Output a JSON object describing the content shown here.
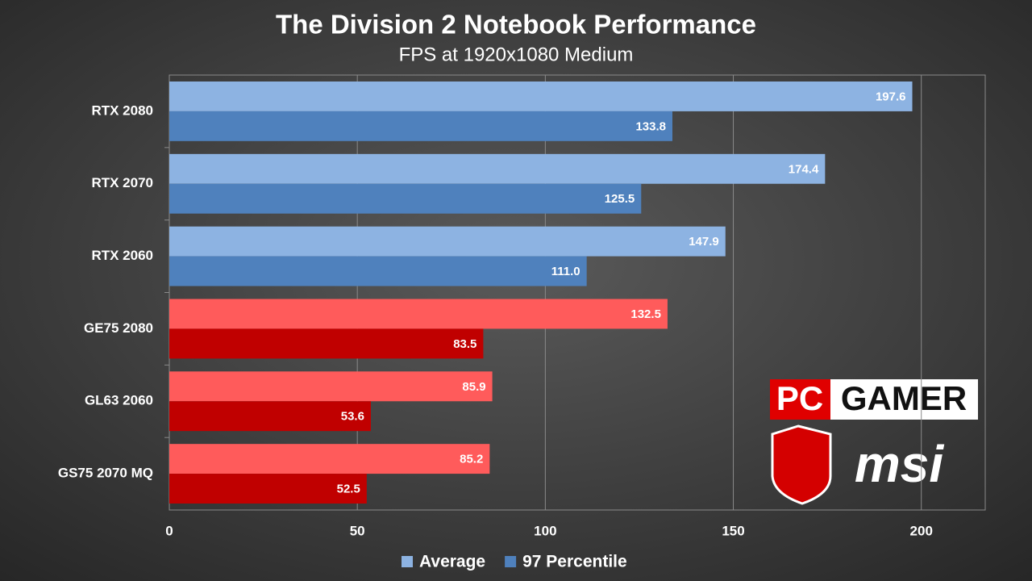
{
  "chart_data": {
    "type": "hbar",
    "title": "The Division 2 Notebook Performance",
    "subtitle": "FPS at 1920x1080 Medium",
    "categories": [
      "RTX 2080",
      "RTX 2070",
      "RTX 2060",
      "GE75 2080",
      "GL63 2060",
      "GS75 2070 MQ"
    ],
    "series": [
      {
        "name": "Average",
        "color": "#8db3e2",
        "colors": [
          "#8db3e2",
          "#8db3e2",
          "#8db3e2",
          "#ff5b5b",
          "#ff5b5b",
          "#ff5b5b"
        ],
        "values": [
          197.6,
          174.4,
          147.9,
          132.5,
          85.9,
          85.2
        ],
        "value_labels": [
          "197.6",
          "174.4",
          "147.9",
          "132.5",
          "85.9",
          "85.2"
        ]
      },
      {
        "name": "97 Percentile",
        "color": "#4f81bd",
        "colors": [
          "#4f81bd",
          "#4f81bd",
          "#4f81bd",
          "#c00000",
          "#c00000",
          "#c00000"
        ],
        "values": [
          133.8,
          125.5,
          111.0,
          83.5,
          53.6,
          52.5
        ],
        "value_labels": [
          "133.8",
          "125.5",
          "111.0",
          "83.5",
          "53.6",
          "52.5"
        ]
      }
    ],
    "xlim": [
      0,
      217
    ],
    "xticks": [
      0,
      50,
      100,
      150,
      200
    ],
    "grid": true,
    "legend": "bottom"
  },
  "logos": {
    "pc": "PC",
    "gamer": "GAMER",
    "msi": "msi"
  }
}
